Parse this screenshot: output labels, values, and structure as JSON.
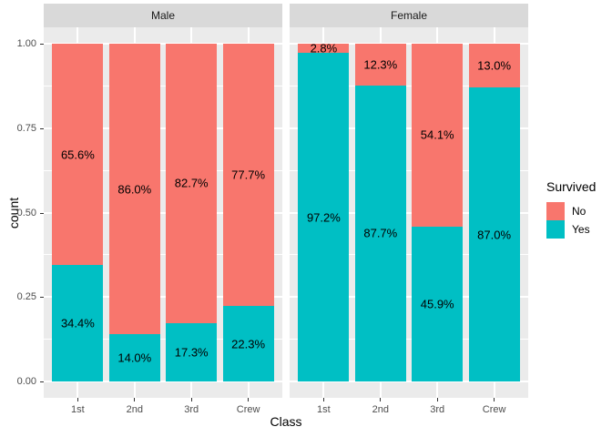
{
  "chart_data": {
    "type": "bar",
    "variant": "stacked_proportion_faceted",
    "title": "",
    "xlabel": "Class",
    "ylabel": "count",
    "ylim": [
      0,
      1
    ],
    "yticks": [
      {
        "value": 1.0,
        "label": "1.00"
      },
      {
        "value": 0.75,
        "label": "0.75"
      },
      {
        "value": 0.5,
        "label": "0.50"
      },
      {
        "value": 0.25,
        "label": "0.25"
      },
      {
        "value": 0.0,
        "label": "0.00"
      }
    ],
    "minor_yticks": [
      0.875,
      0.625,
      0.375,
      0.125
    ],
    "categories": [
      "1st",
      "2nd",
      "3rd",
      "Crew"
    ],
    "legend": {
      "title": "Survived",
      "position": "right",
      "entries": [
        {
          "label": "No",
          "color": "#F8766D"
        },
        {
          "label": "Yes",
          "color": "#00BFC4"
        }
      ]
    },
    "facets": [
      {
        "label": "Male",
        "series": [
          {
            "name": "No",
            "color": "#F8766D",
            "values": [
              0.656,
              0.86,
              0.827,
              0.777
            ],
            "labels": [
              "65.6%",
              "86.0%",
              "82.7%",
              "77.7%"
            ]
          },
          {
            "name": "Yes",
            "color": "#00BFC4",
            "values": [
              0.344,
              0.14,
              0.173,
              0.223
            ],
            "labels": [
              "34.4%",
              "14.0%",
              "17.3%",
              "22.3%"
            ]
          }
        ]
      },
      {
        "label": "Female",
        "series": [
          {
            "name": "No",
            "color": "#F8766D",
            "values": [
              0.028,
              0.123,
              0.541,
              0.13
            ],
            "labels": [
              "2.8%",
              "12.3%",
              "54.1%",
              "13.0%"
            ]
          },
          {
            "name": "Yes",
            "color": "#00BFC4",
            "values": [
              0.972,
              0.877,
              0.459,
              0.87
            ],
            "labels": [
              "97.2%",
              "87.7%",
              "45.9%",
              "87.0%"
            ]
          }
        ]
      }
    ],
    "theme": {
      "panel_bg": "#EBEBEB",
      "strip_bg": "#D9D9D9",
      "grid_color": "#FFFFFF",
      "axis_text_color": "#4D4D4D",
      "bar_label_color": "#000000"
    }
  }
}
